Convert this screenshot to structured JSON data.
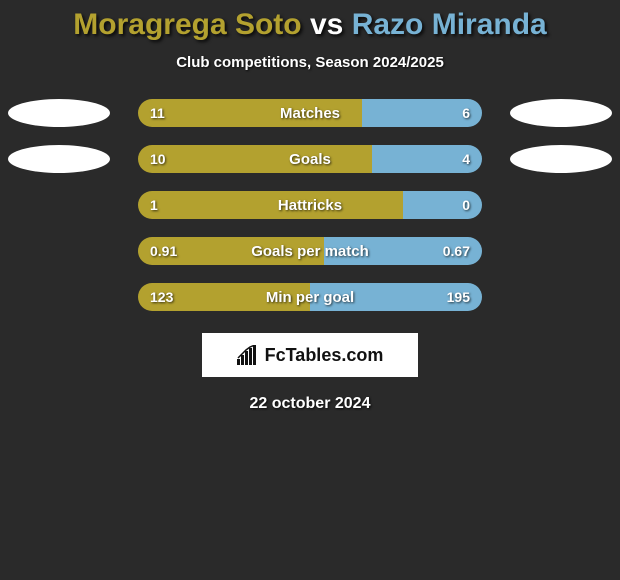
{
  "title": {
    "player1": "Moragrega Soto",
    "vs": "vs",
    "player2": "Razo Miranda",
    "color1": "#b3a12f",
    "color_vs": "#ffffff",
    "color2": "#77b2d4"
  },
  "subtitle": "Club competitions, Season 2024/2025",
  "colors": {
    "left": "#b3a12f",
    "right": "#77b2d4",
    "oval_left": "#ffffff",
    "oval_right": "#ffffff",
    "background": "#2a2a2a",
    "text": "#ffffff"
  },
  "stats": [
    {
      "label": "Matches",
      "left_val": "11",
      "right_val": "6",
      "left_pct": 65,
      "show_ovals": true,
      "oval_top": 0
    },
    {
      "label": "Goals",
      "left_val": "10",
      "right_val": "4",
      "left_pct": 68,
      "show_ovals": true,
      "oval_top": 0
    },
    {
      "label": "Hattricks",
      "left_val": "1",
      "right_val": "0",
      "left_pct": 77,
      "show_ovals": false,
      "oval_top": 0
    },
    {
      "label": "Goals per match",
      "left_val": "0.91",
      "right_val": "0.67",
      "left_pct": 54,
      "show_ovals": false,
      "oval_top": 0
    },
    {
      "label": "Min per goal",
      "left_val": "123",
      "right_val": "195",
      "left_pct": 50,
      "show_ovals": false,
      "oval_top": 0
    }
  ],
  "brand": "FcTables.com",
  "date": "22 october 2024"
}
